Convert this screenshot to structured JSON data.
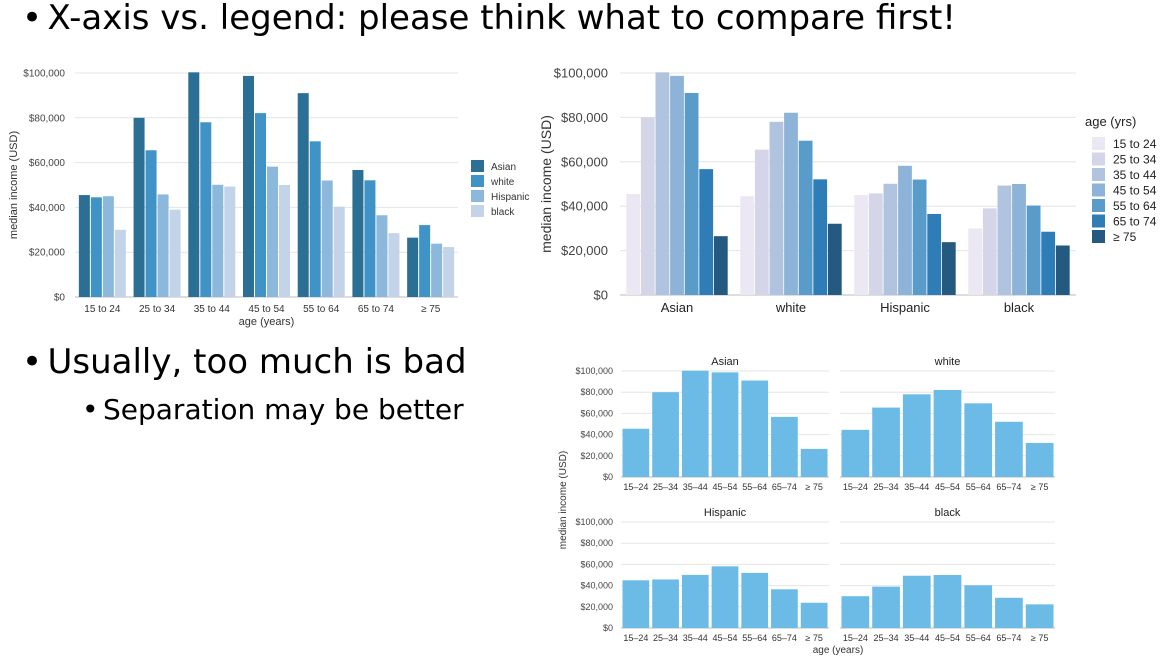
{
  "slide": {
    "bullet_1": "X-axis vs. legend: please think what to compare first!",
    "bullet_2": "Usually, too much is bad",
    "sub_bullet_1": "Separation may be better",
    "bullet_marker": "•"
  },
  "chart_data": [
    {
      "type": "bar",
      "grouping": "by age",
      "categories": [
        "15 to 24",
        "25 to 34",
        "35 to 44",
        "45 to 54",
        "55 to 64",
        "65 to 74",
        "≥ 75"
      ],
      "series": [
        {
          "name": "Asian",
          "values": [
            45500,
            80000,
            100300,
            98700,
            91000,
            56700,
            26500
          ],
          "color": "#2c6f94"
        },
        {
          "name": "white",
          "values": [
            44500,
            65500,
            78000,
            82100,
            69500,
            52100,
            32100
          ],
          "color": "#3f93c7"
        },
        {
          "name": "Hispanic",
          "values": [
            45000,
            45800,
            50100,
            58200,
            52000,
            36500,
            23800
          ],
          "color": "#8cb8dc"
        },
        {
          "name": "black",
          "values": [
            30000,
            39000,
            49300,
            50000,
            40300,
            28500,
            22300
          ],
          "color": "#c3d4e8"
        }
      ],
      "title": "",
      "xlabel": "age (years)",
      "ylabel": "median income (USD)",
      "ylim": [
        0,
        100000
      ],
      "yticks": [
        "$0",
        "$20,000",
        "$40,000",
        "$60,000",
        "$80,000",
        "$100,000"
      ],
      "legend_title": "",
      "legend_position": "right",
      "grid": true
    },
    {
      "type": "bar",
      "grouping": "by race",
      "categories": [
        "Asian",
        "white",
        "Hispanic",
        "black"
      ],
      "series": [
        {
          "name": "15 to 24",
          "values": [
            45500,
            44500,
            45000,
            30000
          ],
          "color": "#ebe8f3"
        },
        {
          "name": "25 to 34",
          "values": [
            80000,
            65500,
            45800,
            39000
          ],
          "color": "#d4d5e9"
        },
        {
          "name": "35 to 44",
          "values": [
            100300,
            78000,
            50100,
            49300
          ],
          "color": "#b0c3df"
        },
        {
          "name": "45 to 54",
          "values": [
            98700,
            82100,
            58200,
            50000
          ],
          "color": "#8db4d8"
        },
        {
          "name": "55 to 64",
          "values": [
            91000,
            69500,
            52000,
            40300
          ],
          "color": "#5a9cc9"
        },
        {
          "name": "65 to 74",
          "values": [
            56700,
            52100,
            36500,
            28500
          ],
          "color": "#2f7db6"
        },
        {
          "name": "≥ 75",
          "values": [
            26500,
            32100,
            23800,
            22300
          ],
          "color": "#245a80"
        }
      ],
      "title": "",
      "xlabel": "",
      "ylabel": "median income (USD)",
      "ylim": [
        0,
        100000
      ],
      "yticks": [
        "$0",
        "$20,000",
        "$40,000",
        "$60,000",
        "$80,000",
        "$100,000"
      ],
      "legend_title": "age (yrs)",
      "legend_position": "right",
      "grid": true
    },
    {
      "type": "bar",
      "grouping": "small multiples",
      "categories": [
        "15–24",
        "25–34",
        "35–44",
        "45–54",
        "55–64",
        "65–74",
        "≥ 75"
      ],
      "panels": [
        {
          "name": "Asian",
          "values": [
            45500,
            80000,
            100300,
            98700,
            91000,
            56700,
            26500
          ]
        },
        {
          "name": "white",
          "values": [
            44500,
            65500,
            78000,
            82100,
            69500,
            52100,
            32100
          ]
        },
        {
          "name": "Hispanic",
          "values": [
            45000,
            45800,
            50100,
            58200,
            52000,
            36500,
            23800
          ]
        },
        {
          "name": "black",
          "values": [
            30000,
            39000,
            49300,
            50000,
            40300,
            28500,
            22300
          ]
        }
      ],
      "bar_color": "#6bbbe6",
      "title": "",
      "xlabel": "age (years)",
      "ylabel": "median income (USD)",
      "ylim": [
        0,
        100000
      ],
      "yticks": [
        "$0",
        "$20,000",
        "$40,000",
        "$60,000",
        "$80,000",
        "$100,000"
      ],
      "grid": true
    }
  ]
}
